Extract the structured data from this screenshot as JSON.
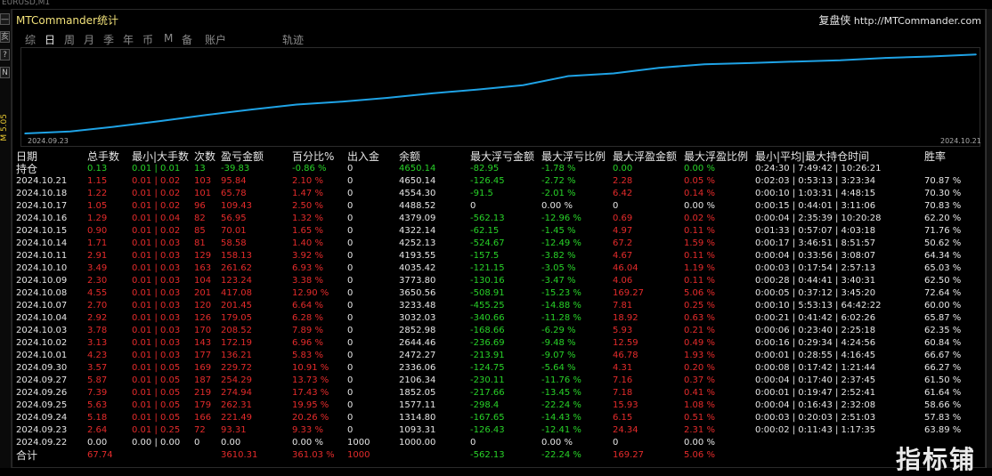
{
  "window": {
    "top_fragment": "EURUSD,M1"
  },
  "left_buttons": [
    "—",
    "亥",
    "?",
    "N"
  ],
  "left_vertical_label": "M 5.05",
  "header": {
    "title": "MTCommander统计",
    "brand_cn": "复盘侠",
    "brand_url": "http://MTCommander.com"
  },
  "tabs": [
    "综",
    "日",
    "周",
    "月",
    "季",
    "年",
    "币",
    "M",
    "备",
    "账户",
    "轨迹"
  ],
  "active_tab": "日",
  "chart_data": {
    "type": "line",
    "x_start_label": "2024.09.23",
    "x_end_label": "2024.10.21",
    "x": [
      "2024.09.22",
      "2024.09.23",
      "2024.09.24",
      "2024.09.25",
      "2024.09.26",
      "2024.09.27",
      "2024.09.30",
      "2024.10.01",
      "2024.10.02",
      "2024.10.03",
      "2024.10.04",
      "2024.10.07",
      "2024.10.08",
      "2024.10.09",
      "2024.10.10",
      "2024.10.11",
      "2024.10.14",
      "2024.10.15",
      "2024.10.16",
      "2024.10.17",
      "2024.10.18",
      "2024.10.21"
    ],
    "values": [
      1000,
      1093.31,
      1314.8,
      1577.11,
      1852.05,
      2106.34,
      2336.06,
      2472.27,
      2644.46,
      2852.98,
      3032.03,
      3233.48,
      3650.56,
      3773.8,
      4035.42,
      4193.55,
      4252.13,
      4322.14,
      4379.09,
      4488.52,
      4554.3,
      4650.14
    ],
    "ylim": [
      1000,
      4700
    ],
    "line_color": "#1fa3e6"
  },
  "table": {
    "columns": [
      "日期",
      "总手数",
      "最小|大手数",
      "次数",
      "盈亏金额",
      "百分比%",
      "出入金",
      "余额",
      "最大浮亏金额",
      "最大浮亏比例",
      "最大浮盈金额",
      "最大浮盈比例",
      "最小|平均|最大持仓时间",
      "胜率"
    ],
    "holding": {
      "label": "持仓",
      "cells": [
        "0.13",
        "0.01 | 0.01",
        "13",
        "-39.83",
        "-0.86 %",
        "0",
        "4650.14",
        "-82.95",
        "-1.78 %",
        "0.00",
        "0.00 %",
        "0:24:30 | 7:49:42 | 10:26:21",
        ""
      ]
    },
    "rows": [
      [
        "2024.10.21",
        "1.15",
        "0.01 | 0.02",
        "103",
        "95.84",
        "2.10 %",
        "0",
        "4650.14",
        "-126.45",
        "-2.72 %",
        "2.28",
        "0.05 %",
        "0:02:03 | 0:53:13 | 3:23:34",
        "70.87 %"
      ],
      [
        "2024.10.18",
        "1.22",
        "0.01 | 0.02",
        "101",
        "65.78",
        "1.47 %",
        "0",
        "4554.30",
        "-91.5",
        "-2.01 %",
        "6.42",
        "0.14 %",
        "0:00:10 | 1:03:31 | 4:48:15",
        "70.30 %"
      ],
      [
        "2024.10.17",
        "1.05",
        "0.01 | 0.02",
        "96",
        "109.43",
        "2.50 %",
        "0",
        "4488.52",
        "0",
        "0.00 %",
        "0",
        "0.00 %",
        "0:00:15 | 0:44:01 | 3:11:06",
        "70.83 %"
      ],
      [
        "2024.10.16",
        "1.29",
        "0.01 | 0.04",
        "82",
        "56.95",
        "1.32 %",
        "0",
        "4379.09",
        "-562.13",
        "-12.96 %",
        "0.69",
        "0.02 %",
        "0:00:04 | 2:35:39 | 10:20:28",
        "62.20 %"
      ],
      [
        "2024.10.15",
        "0.90",
        "0.01 | 0.02",
        "85",
        "70.01",
        "1.65 %",
        "0",
        "4322.14",
        "-62.15",
        "-1.45 %",
        "4.97",
        "0.11 %",
        "0:01:33 | 0:57:07 | 4:03:18",
        "71.76 %"
      ],
      [
        "2024.10.14",
        "1.71",
        "0.01 | 0.03",
        "81",
        "58.58",
        "1.40 %",
        "0",
        "4252.13",
        "-524.67",
        "-12.49 %",
        "67.2",
        "1.59 %",
        "0:00:17 | 3:46:51 | 8:51:57",
        "50.62 %"
      ],
      [
        "2024.10.11",
        "2.91",
        "0.01 | 0.03",
        "129",
        "158.13",
        "3.92 %",
        "0",
        "4193.55",
        "-157.5",
        "-3.82 %",
        "4.67",
        "0.11 %",
        "0:00:04 | 0:33:56 | 3:08:07",
        "64.34 %"
      ],
      [
        "2024.10.10",
        "3.49",
        "0.01 | 0.03",
        "163",
        "261.62",
        "6.93 %",
        "0",
        "4035.42",
        "-121.15",
        "-3.05 %",
        "46.04",
        "1.19 %",
        "0:00:03 | 0:17:54 | 2:57:13",
        "65.03 %"
      ],
      [
        "2024.10.09",
        "2.30",
        "0.01 | 0.03",
        "104",
        "123.24",
        "3.38 %",
        "0",
        "3773.80",
        "-130.16",
        "-3.47 %",
        "4.06",
        "0.11 %",
        "0:00:28 | 0:44:41 | 3:40:31",
        "62.50 %"
      ],
      [
        "2024.10.08",
        "4.55",
        "0.01 | 0.03",
        "201",
        "417.08",
        "12.90 %",
        "0",
        "3650.56",
        "-508.91",
        "-15.23 %",
        "169.27",
        "5.06 %",
        "0:00:05 | 0:37:12 | 3:45:20",
        "72.64 %"
      ],
      [
        "2024.10.07",
        "2.70",
        "0.01 | 0.03",
        "120",
        "201.45",
        "6.64 %",
        "0",
        "3233.48",
        "-455.25",
        "-14.88 %",
        "7.81",
        "0.25 %",
        "0:00:10 | 5:53:13 | 64:42:22",
        "60.00 %"
      ],
      [
        "2024.10.04",
        "2.92",
        "0.01 | 0.03",
        "126",
        "179.05",
        "6.28 %",
        "0",
        "3032.03",
        "-340.66",
        "-11.28 %",
        "18.92",
        "0.63 %",
        "0:00:21 | 0:41:42 | 6:02:26",
        "65.87 %"
      ],
      [
        "2024.10.03",
        "3.78",
        "0.01 | 0.03",
        "170",
        "208.52",
        "7.89 %",
        "0",
        "2852.98",
        "-168.66",
        "-6.29 %",
        "5.93",
        "0.21 %",
        "0:00:06 | 0:23:40 | 2:25:18",
        "62.35 %"
      ],
      [
        "2024.10.02",
        "3.13",
        "0.01 | 0.03",
        "143",
        "172.19",
        "6.96 %",
        "0",
        "2644.46",
        "-236.69",
        "-9.48 %",
        "12.59",
        "0.49 %",
        "0:00:16 | 0:29:34 | 4:24:56",
        "60.84 %"
      ],
      [
        "2024.10.01",
        "4.23",
        "0.01 | 0.03",
        "177",
        "136.21",
        "5.83 %",
        "0",
        "2472.27",
        "-213.91",
        "-9.07 %",
        "46.78",
        "1.93 %",
        "0:00:01 | 0:28:55 | 4:16:45",
        "66.67 %"
      ],
      [
        "2024.09.30",
        "3.57",
        "0.01 | 0.05",
        "169",
        "229.72",
        "10.91 %",
        "0",
        "2336.06",
        "-124.75",
        "-5.64 %",
        "4.31",
        "0.20 %",
        "0:00:08 | 0:17:42 | 1:21:44",
        "66.27 %"
      ],
      [
        "2024.09.27",
        "5.87",
        "0.01 | 0.05",
        "187",
        "254.29",
        "13.73 %",
        "0",
        "2106.34",
        "-230.11",
        "-11.76 %",
        "7.16",
        "0.37 %",
        "0:00:04 | 0:17:40 | 2:37:45",
        "61.50 %"
      ],
      [
        "2024.09.26",
        "7.39",
        "0.01 | 0.05",
        "219",
        "274.94",
        "17.43 %",
        "0",
        "1852.05",
        "-217.66",
        "-13.45 %",
        "7.18",
        "0.41 %",
        "0:00:01 | 0:19:47 | 2:52:41",
        "61.64 %"
      ],
      [
        "2024.09.25",
        "5.63",
        "0.01 | 0.05",
        "179",
        "262.31",
        "19.95 %",
        "0",
        "1577.11",
        "-298.4",
        "-22.24 %",
        "15.93",
        "1.08 %",
        "0:00:04 | 0:16:43 | 2:32:08",
        "58.66 %"
      ],
      [
        "2024.09.24",
        "5.18",
        "0.01 | 0.05",
        "166",
        "221.49",
        "20.26 %",
        "0",
        "1314.80",
        "-167.65",
        "-14.43 %",
        "6.15",
        "0.51 %",
        "0:00:03 | 0:20:03 | 2:51:03",
        "57.83 %"
      ],
      [
        "2024.09.23",
        "2.64",
        "0.01 | 0.25",
        "72",
        "93.31",
        "9.33 %",
        "0",
        "1093.31",
        "-126.43",
        "-12.41 %",
        "24.34",
        "2.31 %",
        "0:00:02 | 0:11:43 | 1:17:35",
        "63.89 %"
      ],
      [
        "2024.09.22",
        "0.00",
        "0.00 | 0.00",
        "0",
        "0.00",
        "0.00 %",
        "1000",
        "1000.00",
        "0",
        "0.00 %",
        "0",
        "0.00 %",
        "",
        ""
      ]
    ],
    "total": {
      "label": "合计",
      "cells": [
        "67.74",
        "",
        "",
        "3610.31",
        "361.03 %",
        "1000",
        "",
        "-562.13",
        "-22.24 %",
        "169.27",
        "5.06 %",
        "",
        ""
      ]
    }
  },
  "watermark": "指标铺",
  "colors": {
    "profit": "#e52b2b",
    "loss": "#28d228",
    "title": "#f2e27a",
    "line": "#1fa3e6"
  }
}
